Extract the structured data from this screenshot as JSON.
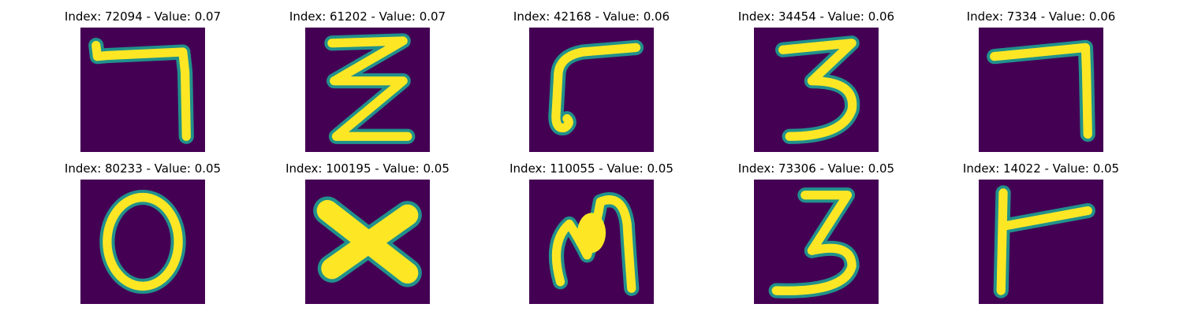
{
  "colors": {
    "background": "#440154",
    "stroke_edge": "#21918c",
    "stroke_core": "#fde725"
  },
  "panels": [
    {
      "title": "Index: 72094 - Value: 0.07",
      "glyph": "seven-like-stroke"
    },
    {
      "title": "Index: 61202 - Value: 0.07",
      "glyph": "zigzag-stroke"
    },
    {
      "title": "Index: 42168 - Value: 0.06",
      "glyph": "hook-stroke"
    },
    {
      "title": "Index: 34454 - Value: 0.06",
      "glyph": "three-stroke"
    },
    {
      "title": "Index: 7334 - Value: 0.06",
      "glyph": "seven-like-stroke"
    },
    {
      "title": "Index: 80233 - Value: 0.05",
      "glyph": "zero-stroke"
    },
    {
      "title": "Index: 100195 - Value: 0.05",
      "glyph": "x-stroke"
    },
    {
      "title": "Index: 110055 - Value: 0.05",
      "glyph": "m-stroke"
    },
    {
      "title": "Index: 73306 - Value: 0.05",
      "glyph": "three-stroke"
    },
    {
      "title": "Index: 14022 - Value: 0.05",
      "glyph": "t-like-stroke"
    }
  ]
}
